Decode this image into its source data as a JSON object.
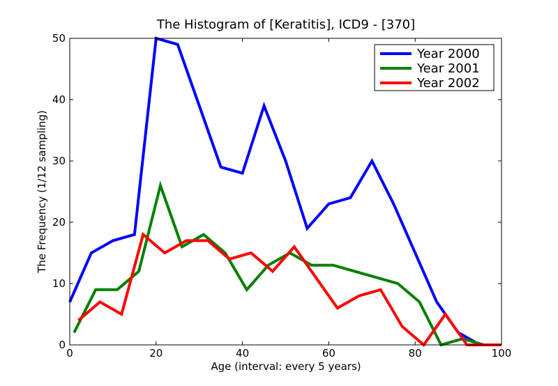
{
  "chart_data": {
    "type": "line",
    "title": "The Histogram of [Keratitis], ICD9 - [370]",
    "xlabel": "Age (interval: every 5 years)",
    "ylabel": "The Frequency (1/12 sampling)",
    "xlim": [
      0,
      100
    ],
    "ylim": [
      0,
      50
    ],
    "xticks": [
      0,
      20,
      40,
      60,
      80,
      100
    ],
    "yticks": [
      0,
      10,
      20,
      30,
      40,
      50
    ],
    "grid": false,
    "legend_position": "top-right",
    "series": [
      {
        "name": "Year 2000",
        "color": "#0000ff",
        "x": [
          0,
          5,
          10,
          15,
          20,
          25,
          30,
          35,
          40,
          45,
          50,
          55,
          60,
          65,
          70,
          75,
          80,
          85,
          90,
          95,
          100
        ],
        "y": [
          7,
          15,
          17,
          18,
          50,
          49,
          39,
          29,
          28,
          39,
          30,
          19,
          23,
          24,
          30,
          23,
          15,
          7,
          2,
          0,
          0
        ]
      },
      {
        "name": "Year 2001",
        "color": "#008000",
        "x": [
          1,
          6,
          11,
          16,
          21,
          26,
          31,
          36,
          41,
          46,
          51,
          56,
          61,
          66,
          71,
          76,
          81,
          86,
          91,
          96,
          100
        ],
        "y": [
          2,
          9,
          9,
          12,
          26,
          16,
          18,
          15,
          9,
          13,
          15,
          13,
          13,
          12,
          11,
          10,
          7,
          0,
          1,
          0,
          0
        ]
      },
      {
        "name": "Year 2002",
        "color": "#ff0000",
        "x": [
          2,
          7,
          12,
          17,
          22,
          27,
          32,
          37,
          42,
          47,
          52,
          57,
          62,
          67,
          72,
          77,
          82,
          87,
          92,
          97,
          100
        ],
        "y": [
          4,
          7,
          5,
          18,
          15,
          17,
          17,
          14,
          15,
          12,
          16,
          11,
          6,
          8,
          9,
          3,
          0,
          5,
          0,
          0,
          0
        ]
      }
    ]
  }
}
